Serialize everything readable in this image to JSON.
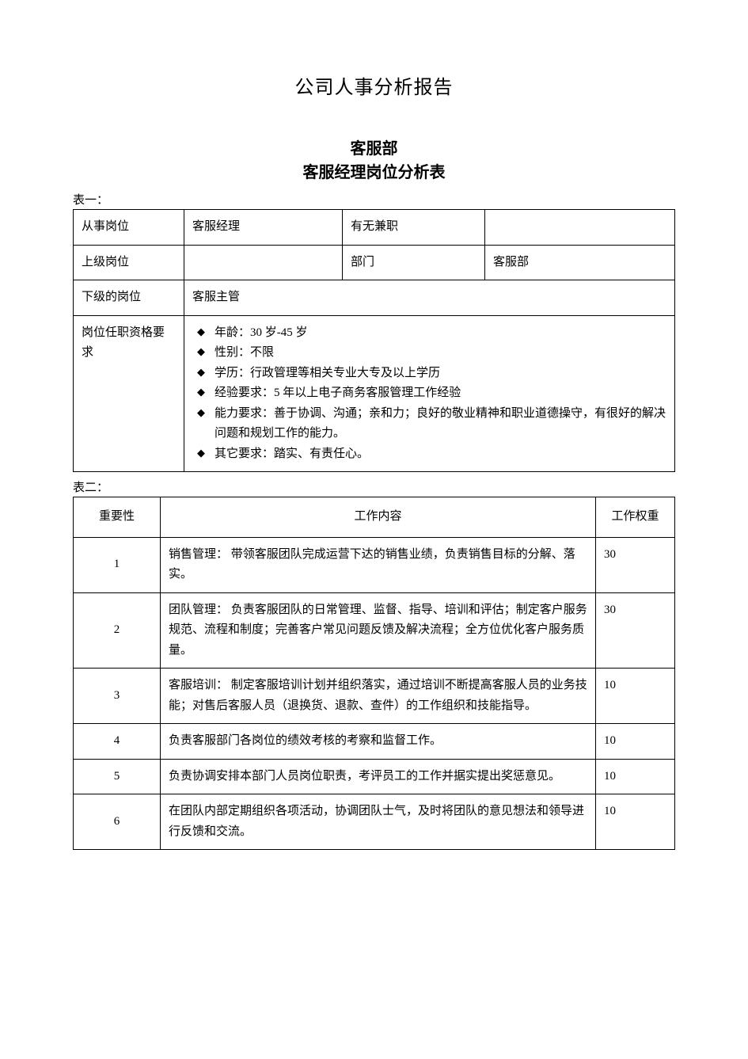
{
  "mainTitle": "公司人事分析报告",
  "sectionDept": "客服部",
  "sectionSubtitle": "客服经理岗位分析表",
  "table1": {
    "label": "表一：",
    "rows": {
      "positionLabel": "从事岗位",
      "positionValue": "客服经理",
      "partTimeLabel": "有无兼职",
      "partTimeValue": "",
      "superiorLabel": "上级岗位",
      "superiorValue": "",
      "deptLabel": "部门",
      "deptValue": "客服部",
      "subordinateLabel": "下级的岗位",
      "subordinateValue": "客服主管",
      "qualificationLabel": "岗位任职资格要求",
      "qualifications": [
        "年龄：30 岁-45 岁",
        "性别：不限",
        "学历：行政管理等相关专业大专及以上学历",
        "经验要求：5 年以上电子商务客服管理工作经验",
        "能力要求：善于协调、沟通；亲和力；良好的敬业精神和职业道德操守，有很好的解决问题和规划工作的能力。",
        "其它要求：踏实、有责任心。"
      ]
    }
  },
  "table2": {
    "label": "表二：",
    "headers": {
      "importance": "重要性",
      "content": "工作内容",
      "weight": "工作权重"
    },
    "rows": [
      {
        "importance": "1",
        "content": "销售管理：  带领客服团队完成运营下达的销售业绩，负责销售目标的分解、落实。",
        "weight": "30"
      },
      {
        "importance": "2",
        "content": "团队管理： 负责客服团队的日常管理、监督、指导、培训和评估；制定客户服务规范、流程和制度；完善客户常见问题反馈及解决流程；全方位优化客户服务质量。",
        "weight": "30"
      },
      {
        "importance": "3",
        "content": "客服培训：  制定客服培训计划并组织落实，通过培训不断提高客服人员的业务技能；对售后客服人员（退换货、退款、查件）的工作组织和技能指导。",
        "weight": "10"
      },
      {
        "importance": "4",
        "content": "负责客服部门各岗位的绩效考核的考察和监督工作。",
        "weight": "10"
      },
      {
        "importance": "5",
        "content": "负责协调安排本部门人员岗位职责，考评员工的工作并据实提出奖惩意见。",
        "weight": "10"
      },
      {
        "importance": "6",
        "content": "在团队内部定期组织各项活动，协调团队士气，及时将团队的意见想法和领导进行反馈和交流。",
        "weight": "10"
      }
    ]
  },
  "style": {
    "backgroundColor": "#ffffff",
    "textColor": "#000000",
    "borderColor": "#000000",
    "fontFamily": "SimSun",
    "mainTitleFontSize": 24,
    "sectionTitleFontSize": 20,
    "bodyFontSize": 15,
    "pageWidth": 945,
    "pageHeight": 1337
  }
}
